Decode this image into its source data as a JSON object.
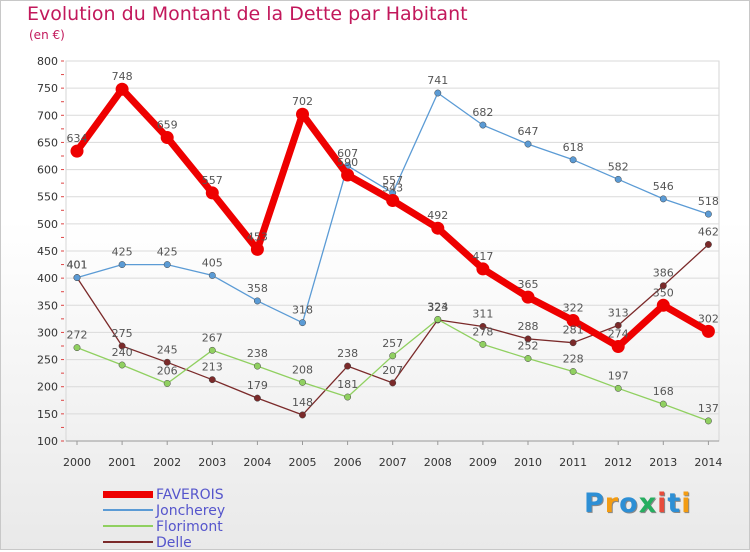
{
  "title": "Evolution du Montant de la Dette par Habitant",
  "subtitle": "(en €)",
  "logo": {
    "text": "Proxiti",
    "colors": [
      "#2d8fd5",
      "#f39c12",
      "#2d8fd5",
      "#27ae60",
      "#e74c3c",
      "#2d8fd5",
      "#f39c12"
    ]
  },
  "chart_data": {
    "type": "line",
    "title": "Evolution du Montant de la Dette par Habitant",
    "subtitle": "(en €)",
    "x": [
      "2000",
      "2001",
      "2002",
      "2003",
      "2004",
      "2005",
      "2006",
      "2007",
      "2008",
      "2009",
      "2010",
      "2011",
      "2012",
      "2013",
      "2014"
    ],
    "ylim": [
      100,
      800
    ],
    "yticks": [
      100,
      150,
      200,
      250,
      300,
      350,
      400,
      450,
      500,
      550,
      600,
      650,
      700,
      750,
      800
    ],
    "grid": "horizontal",
    "legend_position": "bottom-left",
    "series": [
      {
        "name": "FAVEROIS",
        "color": "#ee0000",
        "values": [
          634,
          748,
          659,
          557,
          453,
          702,
          590,
          543,
          492,
          417,
          365,
          322,
          274,
          350,
          302
        ]
      },
      {
        "name": "Joncherey",
        "color": "#5b9bd5",
        "values": [
          401,
          425,
          425,
          405,
          358,
          318,
          607,
          557,
          741,
          682,
          647,
          618,
          582,
          546,
          518
        ]
      },
      {
        "name": "Florimont",
        "color": "#90d060",
        "values": [
          272,
          240,
          206,
          267,
          238,
          208,
          181,
          257,
          324,
          278,
          252,
          228,
          197,
          168,
          137
        ]
      },
      {
        "name": "Delle",
        "color": "#7b2a2a",
        "values": [
          401,
          275,
          245,
          213,
          179,
          148,
          238,
          207,
          323,
          311,
          288,
          281,
          313,
          386,
          462
        ]
      }
    ]
  }
}
